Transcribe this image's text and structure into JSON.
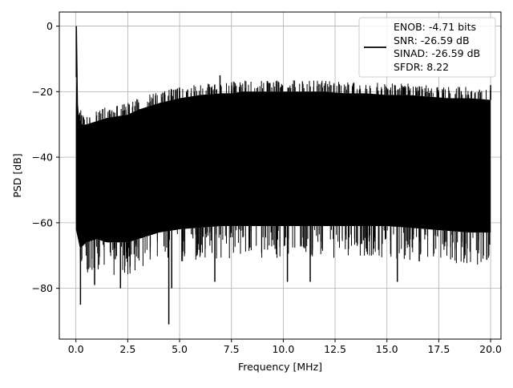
{
  "chart_data": {
    "type": "line",
    "xlabel": "Frequency [MHz]",
    "ylabel": "PSD [dB]",
    "xlim": [
      -0.8,
      20.5
    ],
    "ylim": [
      -95.5,
      4.3
    ],
    "xticks": [
      0.0,
      2.5,
      5.0,
      7.5,
      10.0,
      12.5,
      15.0,
      17.5,
      20.0
    ],
    "xtick_labels": [
      "0.0",
      "2.5",
      "5.0",
      "7.5",
      "10.0",
      "12.5",
      "15.0",
      "17.5",
      "20.0"
    ],
    "yticks": [
      0,
      -20,
      -40,
      -60,
      -80
    ],
    "ytick_labels": [
      "0",
      "−20",
      "−40",
      "−60",
      "−80"
    ],
    "grid": true,
    "legend_position": "top-right",
    "legend": {
      "lines": [
        "ENOB: -4.71 bits",
        "SNR: -26.59 dB",
        "SINAD: -26.59 dB",
        "SFDR: 8.22"
      ],
      "color": "#000000"
    },
    "series": [
      {
        "color": "#000000",
        "upper_envelope": {
          "x": [
            0.0,
            0.05,
            0.1,
            0.15,
            0.3,
            0.5,
            1.0,
            1.5,
            2.0,
            2.5,
            3.0,
            3.5,
            4.0,
            5.0,
            6.0,
            7.0,
            7.5,
            8.0,
            9.0,
            10.0,
            11.0,
            12.0,
            13.0,
            14.0,
            15.0,
            16.0,
            17.0,
            18.0,
            19.0,
            20.0
          ],
          "y": [
            -26,
            0,
            -24,
            -28,
            -30,
            -30,
            -29,
            -28,
            -27.5,
            -27,
            -25.5,
            -24.5,
            -23.5,
            -22,
            -21,
            -20.5,
            -20.5,
            -20,
            -20,
            -20,
            -20,
            -20,
            -20.5,
            -20.5,
            -21,
            -21,
            -21.5,
            -22,
            -22,
            -22.5
          ]
        },
        "lower_envelope": {
          "x": [
            0.0,
            0.2,
            0.5,
            1.0,
            1.5,
            2.0,
            2.5,
            3.0,
            3.5,
            4.0,
            5.0,
            6.0,
            7.0,
            8.0,
            9.0,
            10.0,
            11.0,
            12.0,
            13.0,
            14.0,
            15.0,
            16.0,
            17.0,
            18.0,
            19.0,
            20.0
          ],
          "y": [
            -62,
            -68,
            -66,
            -65,
            -66,
            -66,
            -66,
            -65,
            -64,
            -63,
            -62,
            -61.5,
            -61,
            -61,
            -61,
            -61,
            -61,
            -61,
            -61,
            -61,
            -61,
            -61.5,
            -62,
            -62.5,
            -63,
            -63
          ]
        },
        "peaks": [
          {
            "x": 0.02,
            "y": 0
          },
          {
            "x": 0.22,
            "y": -85
          },
          {
            "x": 4.48,
            "y": -91
          },
          {
            "x": 4.62,
            "y": -80
          },
          {
            "x": 0.9,
            "y": -79
          },
          {
            "x": 2.15,
            "y": -80
          },
          {
            "x": 6.7,
            "y": -78
          },
          {
            "x": 10.2,
            "y": -78
          },
          {
            "x": 11.3,
            "y": -78
          },
          {
            "x": 15.5,
            "y": -78
          },
          {
            "x": 6.95,
            "y": -15
          },
          {
            "x": 12.3,
            "y": -18
          },
          {
            "x": 20.0,
            "y": -18
          },
          {
            "x": 9.9,
            "y": -18.5
          }
        ]
      }
    ]
  }
}
